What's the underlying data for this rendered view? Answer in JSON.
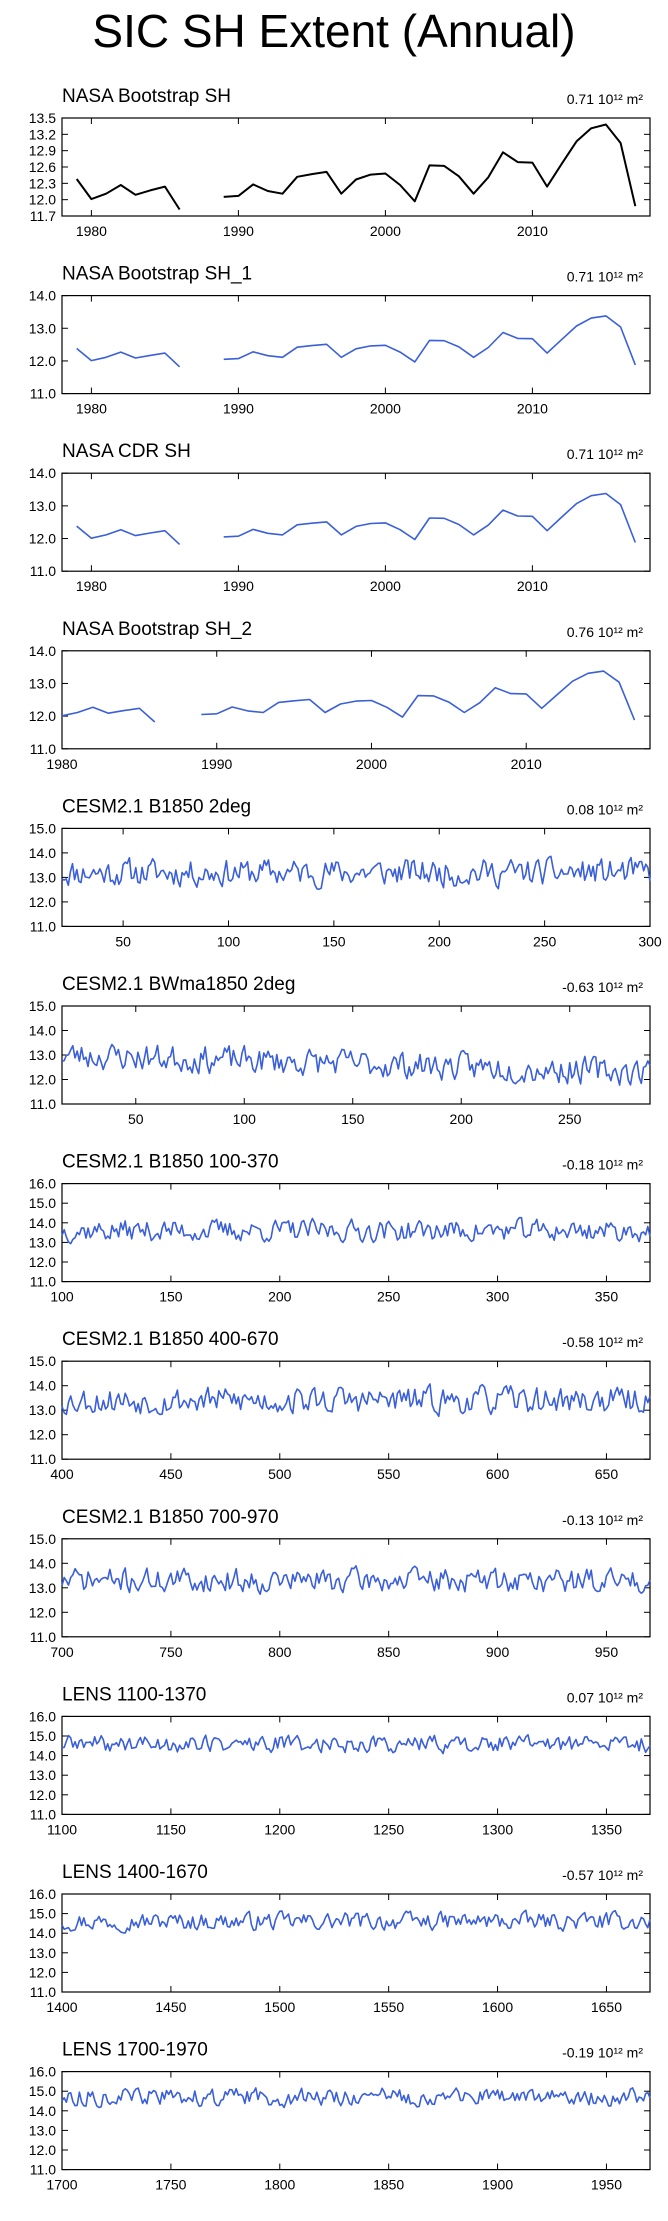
{
  "figure_title": "SIC SH Extent (Annual)",
  "colors": {
    "obs_line": "#000000",
    "model_line": "#3a5fd9",
    "axis": "#000000"
  },
  "chart_data": [
    {
      "type": "line",
      "title": "NASA Bootstrap SH",
      "stat": "0.71",
      "stat_unit": "10¹² m²",
      "color": "black",
      "ylim": [
        11.7,
        13.5
      ],
      "yticks": [
        11.7,
        12.0,
        12.3,
        12.6,
        12.9,
        13.2,
        13.5
      ],
      "ytick_labels": [
        "11.7",
        "12.0",
        "12.3",
        "12.6",
        "12.9",
        "13.2",
        "13.5"
      ],
      "xlim": [
        1978,
        2018
      ],
      "xticks": [
        1980,
        1990,
        2000,
        2010
      ],
      "segments": [
        {
          "x": [
            1979,
            1980,
            1981,
            1982,
            1983,
            1984,
            1985,
            1986
          ],
          "y": [
            12.38,
            12.01,
            12.11,
            12.27,
            12.09,
            12.17,
            12.24,
            11.82
          ]
        },
        {
          "x": [
            1989,
            1990,
            1991,
            1992,
            1993,
            1994,
            1995,
            1996,
            1997,
            1998,
            1999,
            2000,
            2001,
            2002,
            2003,
            2004,
            2005,
            2006,
            2007,
            2008,
            2009,
            2010,
            2011,
            2012,
            2013,
            2014,
            2015,
            2016,
            2017
          ],
          "y": [
            12.05,
            12.07,
            12.28,
            12.16,
            12.11,
            12.42,
            12.47,
            12.51,
            12.11,
            12.37,
            12.46,
            12.48,
            12.27,
            11.97,
            12.63,
            12.62,
            12.43,
            12.11,
            12.41,
            12.87,
            12.69,
            12.68,
            12.24,
            12.66,
            13.07,
            13.31,
            13.38,
            13.04,
            11.88
          ]
        }
      ]
    },
    {
      "type": "line",
      "title": "NASA Bootstrap SH_1",
      "stat": "0.71",
      "stat_unit": "10¹² m²",
      "color": "blue",
      "ylim": [
        11.0,
        14.0
      ],
      "yticks": [
        11.0,
        12.0,
        13.0,
        14.0
      ],
      "ytick_labels": [
        "11.0",
        "12.0",
        "13.0",
        "14.0"
      ],
      "xlim": [
        1978,
        2018
      ],
      "xticks": [
        1980,
        1990,
        2000,
        2010
      ],
      "segments": [
        {
          "x": [
            1979,
            1980,
            1981,
            1982,
            1983,
            1984,
            1985,
            1986
          ],
          "y": [
            12.38,
            12.01,
            12.11,
            12.27,
            12.09,
            12.17,
            12.24,
            11.82
          ]
        },
        {
          "x": [
            1989,
            1990,
            1991,
            1992,
            1993,
            1994,
            1995,
            1996,
            1997,
            1998,
            1999,
            2000,
            2001,
            2002,
            2003,
            2004,
            2005,
            2006,
            2007,
            2008,
            2009,
            2010,
            2011,
            2012,
            2013,
            2014,
            2015,
            2016,
            2017
          ],
          "y": [
            12.05,
            12.07,
            12.28,
            12.16,
            12.11,
            12.42,
            12.47,
            12.51,
            12.11,
            12.37,
            12.46,
            12.48,
            12.27,
            11.97,
            12.63,
            12.62,
            12.43,
            12.11,
            12.41,
            12.87,
            12.69,
            12.68,
            12.24,
            12.66,
            13.07,
            13.31,
            13.38,
            13.04,
            11.88
          ]
        }
      ]
    },
    {
      "type": "line",
      "title": "NASA CDR SH",
      "stat": "0.71",
      "stat_unit": "10¹² m²",
      "color": "blue",
      "ylim": [
        11.0,
        14.0
      ],
      "yticks": [
        11.0,
        12.0,
        13.0,
        14.0
      ],
      "ytick_labels": [
        "11.0",
        "12.0",
        "13.0",
        "14.0"
      ],
      "xlim": [
        1978,
        2018
      ],
      "xticks": [
        1980,
        1990,
        2000,
        2010
      ],
      "segments": [
        {
          "x": [
            1979,
            1980,
            1981,
            1982,
            1983,
            1984,
            1985,
            1986
          ],
          "y": [
            12.38,
            12.01,
            12.11,
            12.27,
            12.09,
            12.17,
            12.24,
            11.82
          ]
        },
        {
          "x": [
            1989,
            1990,
            1991,
            1992,
            1993,
            1994,
            1995,
            1996,
            1997,
            1998,
            1999,
            2000,
            2001,
            2002,
            2003,
            2004,
            2005,
            2006,
            2007,
            2008,
            2009,
            2010,
            2011,
            2012,
            2013,
            2014,
            2015,
            2016,
            2017
          ],
          "y": [
            12.05,
            12.07,
            12.28,
            12.16,
            12.11,
            12.42,
            12.47,
            12.51,
            12.11,
            12.37,
            12.46,
            12.48,
            12.27,
            11.97,
            12.63,
            12.62,
            12.43,
            12.11,
            12.41,
            12.87,
            12.69,
            12.68,
            12.24,
            12.66,
            13.07,
            13.31,
            13.38,
            13.04,
            11.88
          ]
        }
      ]
    },
    {
      "type": "line",
      "title": "NASA Bootstrap SH_2",
      "stat": "0.76",
      "stat_unit": "10¹² m²",
      "color": "blue",
      "ylim": [
        11.0,
        14.0
      ],
      "yticks": [
        11.0,
        12.0,
        13.0,
        14.0
      ],
      "ytick_labels": [
        "11.0",
        "12.0",
        "13.0",
        "14.0"
      ],
      "xlim": [
        1980,
        2018
      ],
      "xticks": [
        1980,
        1990,
        2000,
        2010
      ],
      "segments": [
        {
          "x": [
            1980,
            1981,
            1982,
            1983,
            1984,
            1985,
            1986
          ],
          "y": [
            12.01,
            12.11,
            12.27,
            12.09,
            12.17,
            12.24,
            11.82
          ]
        },
        {
          "x": [
            1989,
            1990,
            1991,
            1992,
            1993,
            1994,
            1995,
            1996,
            1997,
            1998,
            1999,
            2000,
            2001,
            2002,
            2003,
            2004,
            2005,
            2006,
            2007,
            2008,
            2009,
            2010,
            2011,
            2012,
            2013,
            2014,
            2015,
            2016,
            2017
          ],
          "y": [
            12.05,
            12.07,
            12.28,
            12.16,
            12.11,
            12.42,
            12.47,
            12.51,
            12.11,
            12.37,
            12.46,
            12.48,
            12.27,
            11.97,
            12.63,
            12.62,
            12.43,
            12.11,
            12.41,
            12.87,
            12.69,
            12.68,
            12.24,
            12.66,
            13.07,
            13.31,
            13.38,
            13.04,
            11.88
          ]
        }
      ]
    },
    {
      "type": "line",
      "title": "CESM2.1 B1850 2deg",
      "stat": "0.08",
      "stat_unit": "10¹² m²",
      "color": "blue",
      "ylim": [
        11.0,
        15.0
      ],
      "yticks": [
        11.0,
        12.0,
        13.0,
        14.0,
        15.0
      ],
      "ytick_labels": [
        "11.0",
        "12.0",
        "13.0",
        "14.0",
        "15.0"
      ],
      "xlim": [
        21,
        300
      ],
      "xticks": [
        50,
        100,
        150,
        200,
        250,
        300
      ],
      "generated": {
        "start": 21,
        "end": 300,
        "mean": 13.2,
        "amp": 0.5,
        "seed": 11
      }
    },
    {
      "type": "line",
      "title": "CESM2.1 BWma1850 2deg",
      "stat": "-0.63",
      "stat_unit": "10¹² m²",
      "color": "blue",
      "ylim": [
        11.0,
        15.0
      ],
      "yticks": [
        11.0,
        12.0,
        13.0,
        14.0,
        15.0
      ],
      "ytick_labels": [
        "11.0",
        "12.0",
        "13.0",
        "14.0",
        "15.0"
      ],
      "xlim": [
        16,
        287
      ],
      "xticks": [
        50,
        100,
        150,
        200,
        250
      ],
      "generated": {
        "start": 16,
        "end": 287,
        "mean": 13.0,
        "amp": 0.5,
        "trend": -0.7,
        "seed": 23
      }
    },
    {
      "type": "line",
      "title": "CESM2.1 B1850 100-370",
      "stat": "-0.18",
      "stat_unit": "10¹² m²",
      "color": "blue",
      "ylim": [
        11.0,
        16.0
      ],
      "yticks": [
        11.0,
        12.0,
        13.0,
        14.0,
        15.0,
        16.0
      ],
      "ytick_labels": [
        "11.0",
        "12.0",
        "13.0",
        "14.0",
        "15.0",
        "16.0"
      ],
      "xlim": [
        100,
        370
      ],
      "xticks": [
        100,
        150,
        200,
        250,
        300,
        350
      ],
      "generated": {
        "start": 100,
        "end": 370,
        "mean": 13.6,
        "amp": 0.5,
        "seed": 37
      }
    },
    {
      "type": "line",
      "title": "CESM2.1 B1850 400-670",
      "stat": "-0.58",
      "stat_unit": "10¹² m²",
      "color": "blue",
      "ylim": [
        11.0,
        15.0
      ],
      "yticks": [
        11.0,
        12.0,
        13.0,
        14.0,
        15.0
      ],
      "ytick_labels": [
        "11.0",
        "12.0",
        "13.0",
        "14.0",
        "15.0"
      ],
      "xlim": [
        400,
        670
      ],
      "xticks": [
        400,
        450,
        500,
        550,
        600,
        650
      ],
      "generated": {
        "start": 400,
        "end": 670,
        "mean": 13.4,
        "amp": 0.5,
        "seed": 53
      }
    },
    {
      "type": "line",
      "title": "CESM2.1 B1850 700-970",
      "stat": "-0.13",
      "stat_unit": "10¹² m²",
      "color": "blue",
      "ylim": [
        11.0,
        15.0
      ],
      "yticks": [
        11.0,
        12.0,
        13.0,
        14.0,
        15.0
      ],
      "ytick_labels": [
        "11.0",
        "12.0",
        "13.0",
        "14.0",
        "15.0"
      ],
      "xlim": [
        700,
        970
      ],
      "xticks": [
        700,
        750,
        800,
        850,
        900,
        950
      ],
      "generated": {
        "start": 700,
        "end": 970,
        "mean": 13.3,
        "amp": 0.45,
        "seed": 71
      }
    },
    {
      "type": "line",
      "title": "LENS 1100-1370",
      "stat": "0.07",
      "stat_unit": "10¹² m²",
      "color": "blue",
      "ylim": [
        11.0,
        16.0
      ],
      "yticks": [
        11.0,
        12.0,
        13.0,
        14.0,
        15.0,
        16.0
      ],
      "ytick_labels": [
        "11.0",
        "12.0",
        "13.0",
        "14.0",
        "15.0",
        "16.0"
      ],
      "xlim": [
        1100,
        1370
      ],
      "xticks": [
        1100,
        1150,
        1200,
        1250,
        1300,
        1350
      ],
      "generated": {
        "start": 1100,
        "end": 1370,
        "mean": 14.6,
        "amp": 0.4,
        "seed": 89
      }
    },
    {
      "type": "line",
      "title": "LENS 1400-1670",
      "stat": "-0.57",
      "stat_unit": "10¹² m²",
      "color": "blue",
      "ylim": [
        11.0,
        16.0
      ],
      "yticks": [
        11.0,
        12.0,
        13.0,
        14.0,
        15.0,
        16.0
      ],
      "ytick_labels": [
        "11.0",
        "12.0",
        "13.0",
        "14.0",
        "15.0",
        "16.0"
      ],
      "xlim": [
        1400,
        1670
      ],
      "xticks": [
        1400,
        1450,
        1500,
        1550,
        1600,
        1650
      ],
      "generated": {
        "start": 1400,
        "end": 1670,
        "mean": 14.6,
        "amp": 0.4,
        "seed": 97
      }
    },
    {
      "type": "line",
      "title": "LENS 1700-1970",
      "stat": "-0.19",
      "stat_unit": "10¹² m²",
      "color": "blue",
      "ylim": [
        11.0,
        16.0
      ],
      "yticks": [
        11.0,
        12.0,
        13.0,
        14.0,
        15.0,
        16.0
      ],
      "ytick_labels": [
        "11.0",
        "12.0",
        "13.0",
        "14.0",
        "15.0",
        "16.0"
      ],
      "xlim": [
        1700,
        1970
      ],
      "xticks": [
        1700,
        1750,
        1800,
        1850,
        1900,
        1950
      ],
      "generated": {
        "start": 1700,
        "end": 1970,
        "mean": 14.7,
        "amp": 0.4,
        "seed": 113
      }
    }
  ]
}
